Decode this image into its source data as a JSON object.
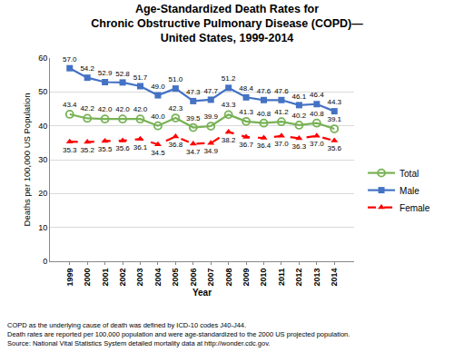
{
  "chart_data": {
    "type": "line",
    "title": [
      "Age-Standardized Death Rates for",
      "Chronic Obstructive Pulmonary Disease (COPD)—",
      "United States, 1999-2014"
    ],
    "x_label": "Year",
    "y_label": "Deaths per 100,000 US Population",
    "categories": [
      "1999",
      "2000",
      "2001",
      "2002",
      "2003",
      "2004",
      "2005",
      "2006",
      "2007",
      "2008",
      "2009",
      "2010",
      "2011",
      "2012",
      "2013",
      "2014"
    ],
    "series": [
      {
        "name": "Total",
        "color": "#77b255",
        "marker": "circle-open",
        "line_style": "solid",
        "values": [
          43.4,
          42.2,
          42.0,
          42.0,
          42.0,
          40.0,
          42.3,
          39.5,
          39.9,
          43.3,
          41.3,
          40.8,
          41.2,
          40.2,
          40.8,
          39.1
        ],
        "value_labels": [
          "43.4",
          "42.2",
          "42.0",
          "42.0",
          "42.0",
          "40.0",
          "42.3",
          "39.5",
          "39.9",
          "43.3",
          "41.3",
          "40.8",
          "41.2",
          "40.2",
          "40.8",
          "39.1"
        ]
      },
      {
        "name": "Male",
        "color": "#4472c4",
        "marker": "square",
        "line_style": "solid",
        "values": [
          57.0,
          54.2,
          52.9,
          52.8,
          51.7,
          49.0,
          51.0,
          47.3,
          47.7,
          51.2,
          48.4,
          47.6,
          47.6,
          46.1,
          46.4,
          44.3
        ],
        "value_labels": [
          "57.0",
          "54.2",
          "52.9",
          "52.8",
          "51.7",
          "49.0",
          "51.0",
          "47.3",
          "47.7",
          "51.2",
          "48.4",
          "47.6",
          "47.6",
          "46.1",
          "46.4",
          "44.3"
        ]
      },
      {
        "name": "Female",
        "color": "#ff0000",
        "marker": "triangle-up",
        "line_style": "dash",
        "values": [
          35.3,
          35.2,
          35.5,
          35.6,
          36.1,
          34.5,
          36.8,
          34.7,
          34.9,
          38.2,
          36.7,
          36.4,
          37.0,
          36.3,
          37.0,
          35.6
        ],
        "value_labels": [
          "35.3",
          "35.2",
          "35.5",
          "35.6",
          "36.1",
          "34.5",
          "36.8",
          "34.7",
          "34.9",
          "38.2",
          "36.7",
          "36.4",
          "37.0",
          "36.3",
          "37.0",
          "35.6"
        ]
      }
    ],
    "ylim": [
      0,
      60
    ],
    "yticks": [
      0,
      10,
      20,
      30,
      40,
      50,
      60
    ],
    "grid": true,
    "legend": "right",
    "data_labels": true,
    "notes": [
      "COPD as the underlying cause of death was defined by ICD-10 codes J40-J44.",
      "Death rates are reported per 100,000 population and were age-standardized to the 2000 US projected population.",
      "Source: National Vital Statistics System detailed mortality data at http://wonder.cdc.gov."
    ]
  }
}
